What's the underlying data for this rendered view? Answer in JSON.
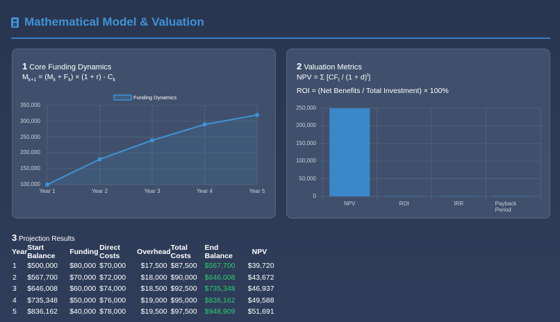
{
  "header": {
    "title": "Mathematical Model & Valuation",
    "icon": "calculator-icon",
    "accent": "#3f93d6"
  },
  "section1": {
    "number": "1",
    "title": "Core Funding Dynamics",
    "formula_parts": [
      "M",
      "k+1",
      " = (M",
      "k",
      " + F",
      "k",
      ") × (1 + r) - C",
      "k"
    ]
  },
  "section2": {
    "number": "2",
    "title": "Valuation Metrics",
    "npv_parts": [
      "NPV = Σ [CF",
      "t",
      " / (1 + d)",
      "t",
      "]"
    ],
    "roi_formula": "ROI = (Net Benefits / Total Investment) × 100%"
  },
  "chart_data": [
    {
      "type": "line",
      "legend": "Funding Dynamics",
      "legend_position": "top",
      "categories": [
        "Year 1",
        "Year 2",
        "Year 3",
        "Year 4",
        "Year 5"
      ],
      "values": [
        100000,
        180000,
        240000,
        290000,
        320000
      ],
      "ylim": [
        100000,
        350000
      ],
      "yticks": [
        "350,000",
        "300,000",
        "250,000",
        "200,000",
        "150,000",
        "100,000"
      ],
      "grid": true,
      "color": "#3f93d6"
    },
    {
      "type": "bar",
      "categories": [
        "NPV",
        "ROI",
        "IRR",
        "Payback Period"
      ],
      "values": [
        250000,
        0,
        0,
        0
      ],
      "ylim": [
        0,
        250000
      ],
      "yticks": [
        "250,000",
        "200,000",
        "150,000",
        "100,000",
        "50,000",
        "0"
      ],
      "grid": true,
      "color": "#3b87c8"
    }
  ],
  "section3": {
    "number": "3",
    "title": "Projection Results",
    "headers": [
      "Year",
      "Start Balance",
      "Funding",
      "Direct Costs",
      "Overhead",
      "Total Costs",
      "End Balance",
      "NPV"
    ],
    "rows": [
      [
        "1",
        "$500,000",
        "$80,000",
        "$70,000",
        "$17,500",
        "$87,500",
        "$567,700",
        "$39,720"
      ],
      [
        "2",
        "$567,700",
        "$70,000",
        "$72,000",
        "$18,000",
        "$90,000",
        "$646,008",
        "$43,672"
      ],
      [
        "3",
        "$646,008",
        "$60,000",
        "$74,000",
        "$18,500",
        "$92,500",
        "$735,348",
        "$46,937"
      ],
      [
        "4",
        "$735,348",
        "$50,000",
        "$76,000",
        "$19,000",
        "$95,000",
        "$836,162",
        "$49,588"
      ],
      [
        "5",
        "$836,162",
        "$40,000",
        "$78,000",
        "$19,500",
        "$97,500",
        "$948,909",
        "$51,691"
      ]
    ]
  }
}
